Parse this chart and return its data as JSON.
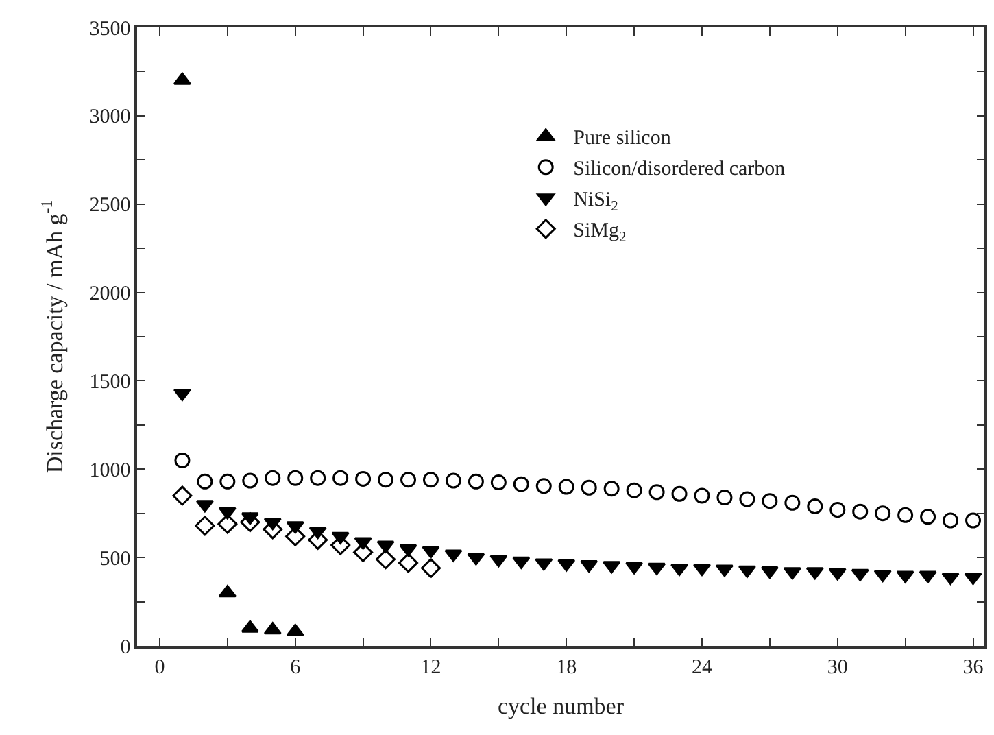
{
  "chart_data": {
    "type": "scatter",
    "xlabel": "cycle number",
    "ylabel": "Discharge capacity / mAh g$^{-1}$",
    "xlim": [
      -1,
      36.5
    ],
    "ylim": [
      0,
      3500
    ],
    "xticks": [
      0,
      {
        "value": 3,
        "label": null
      },
      6,
      {
        "value": 9,
        "label": null
      },
      12,
      {
        "value": 15,
        "label": null
      },
      18,
      {
        "value": 21,
        "label": null
      },
      24,
      {
        "value": 27,
        "label": null
      },
      30,
      {
        "value": 33,
        "label": null
      },
      36
    ],
    "yticks": [
      0,
      {
        "value": 250,
        "label": null
      },
      500,
      {
        "value": 750,
        "label": null
      },
      1000,
      {
        "value": 1250,
        "label": null
      },
      1500,
      {
        "value": 1750,
        "label": null
      },
      2000,
      {
        "value": 2250,
        "label": null
      },
      2500,
      {
        "value": 2750,
        "label": null
      },
      3000,
      {
        "value": 3250,
        "label": null
      },
      3500
    ],
    "legend": "top right",
    "series": [
      {
        "name": "Pure silicon",
        "color": "#000000",
        "marker": "triangle-up",
        "x": [
          1,
          3,
          4,
          5,
          6
        ],
        "values": [
          3200,
          300,
          100,
          90,
          80
        ]
      },
      {
        "name": "Silicon/disordered carbon",
        "color": "#000000",
        "marker": "circle-open",
        "x": [
          1,
          2,
          3,
          4,
          5,
          6,
          7,
          8,
          9,
          10,
          11,
          12,
          13,
          14,
          15,
          16,
          17,
          18,
          19,
          20,
          21,
          22,
          23,
          24,
          25,
          26,
          27,
          28,
          29,
          30,
          31,
          32,
          33,
          34,
          35,
          36
        ],
        "values": [
          1050,
          930,
          930,
          935,
          950,
          950,
          950,
          950,
          945,
          940,
          940,
          940,
          935,
          930,
          925,
          915,
          905,
          900,
          895,
          890,
          880,
          870,
          860,
          850,
          840,
          830,
          820,
          810,
          790,
          770,
          760,
          750,
          740,
          730,
          710,
          710
        ]
      },
      {
        "name": "NiSi$_{2}$",
        "color": "#000000",
        "marker": "triangle-down",
        "x": [
          1,
          2,
          3,
          4,
          5,
          6,
          7,
          8,
          9,
          10,
          11,
          12,
          13,
          14,
          15,
          16,
          17,
          18,
          19,
          20,
          21,
          22,
          23,
          24,
          25,
          26,
          27,
          28,
          29,
          30,
          31,
          32,
          33,
          34,
          35,
          36
        ],
        "values": [
          1430,
          800,
          760,
          730,
          700,
          680,
          650,
          620,
          590,
          570,
          550,
          540,
          520,
          500,
          490,
          480,
          470,
          465,
          460,
          455,
          450,
          445,
          440,
          440,
          435,
          430,
          425,
          420,
          420,
          415,
          410,
          405,
          400,
          400,
          390,
          390
        ]
      },
      {
        "name": "SiMg$_{2}$",
        "color": "#000000",
        "marker": "diamond-open",
        "x": [
          1,
          2,
          3,
          4,
          5,
          6,
          7,
          8,
          9,
          10,
          11,
          12
        ],
        "values": [
          850,
          680,
          690,
          700,
          660,
          620,
          600,
          570,
          530,
          490,
          470,
          440
        ]
      }
    ]
  }
}
